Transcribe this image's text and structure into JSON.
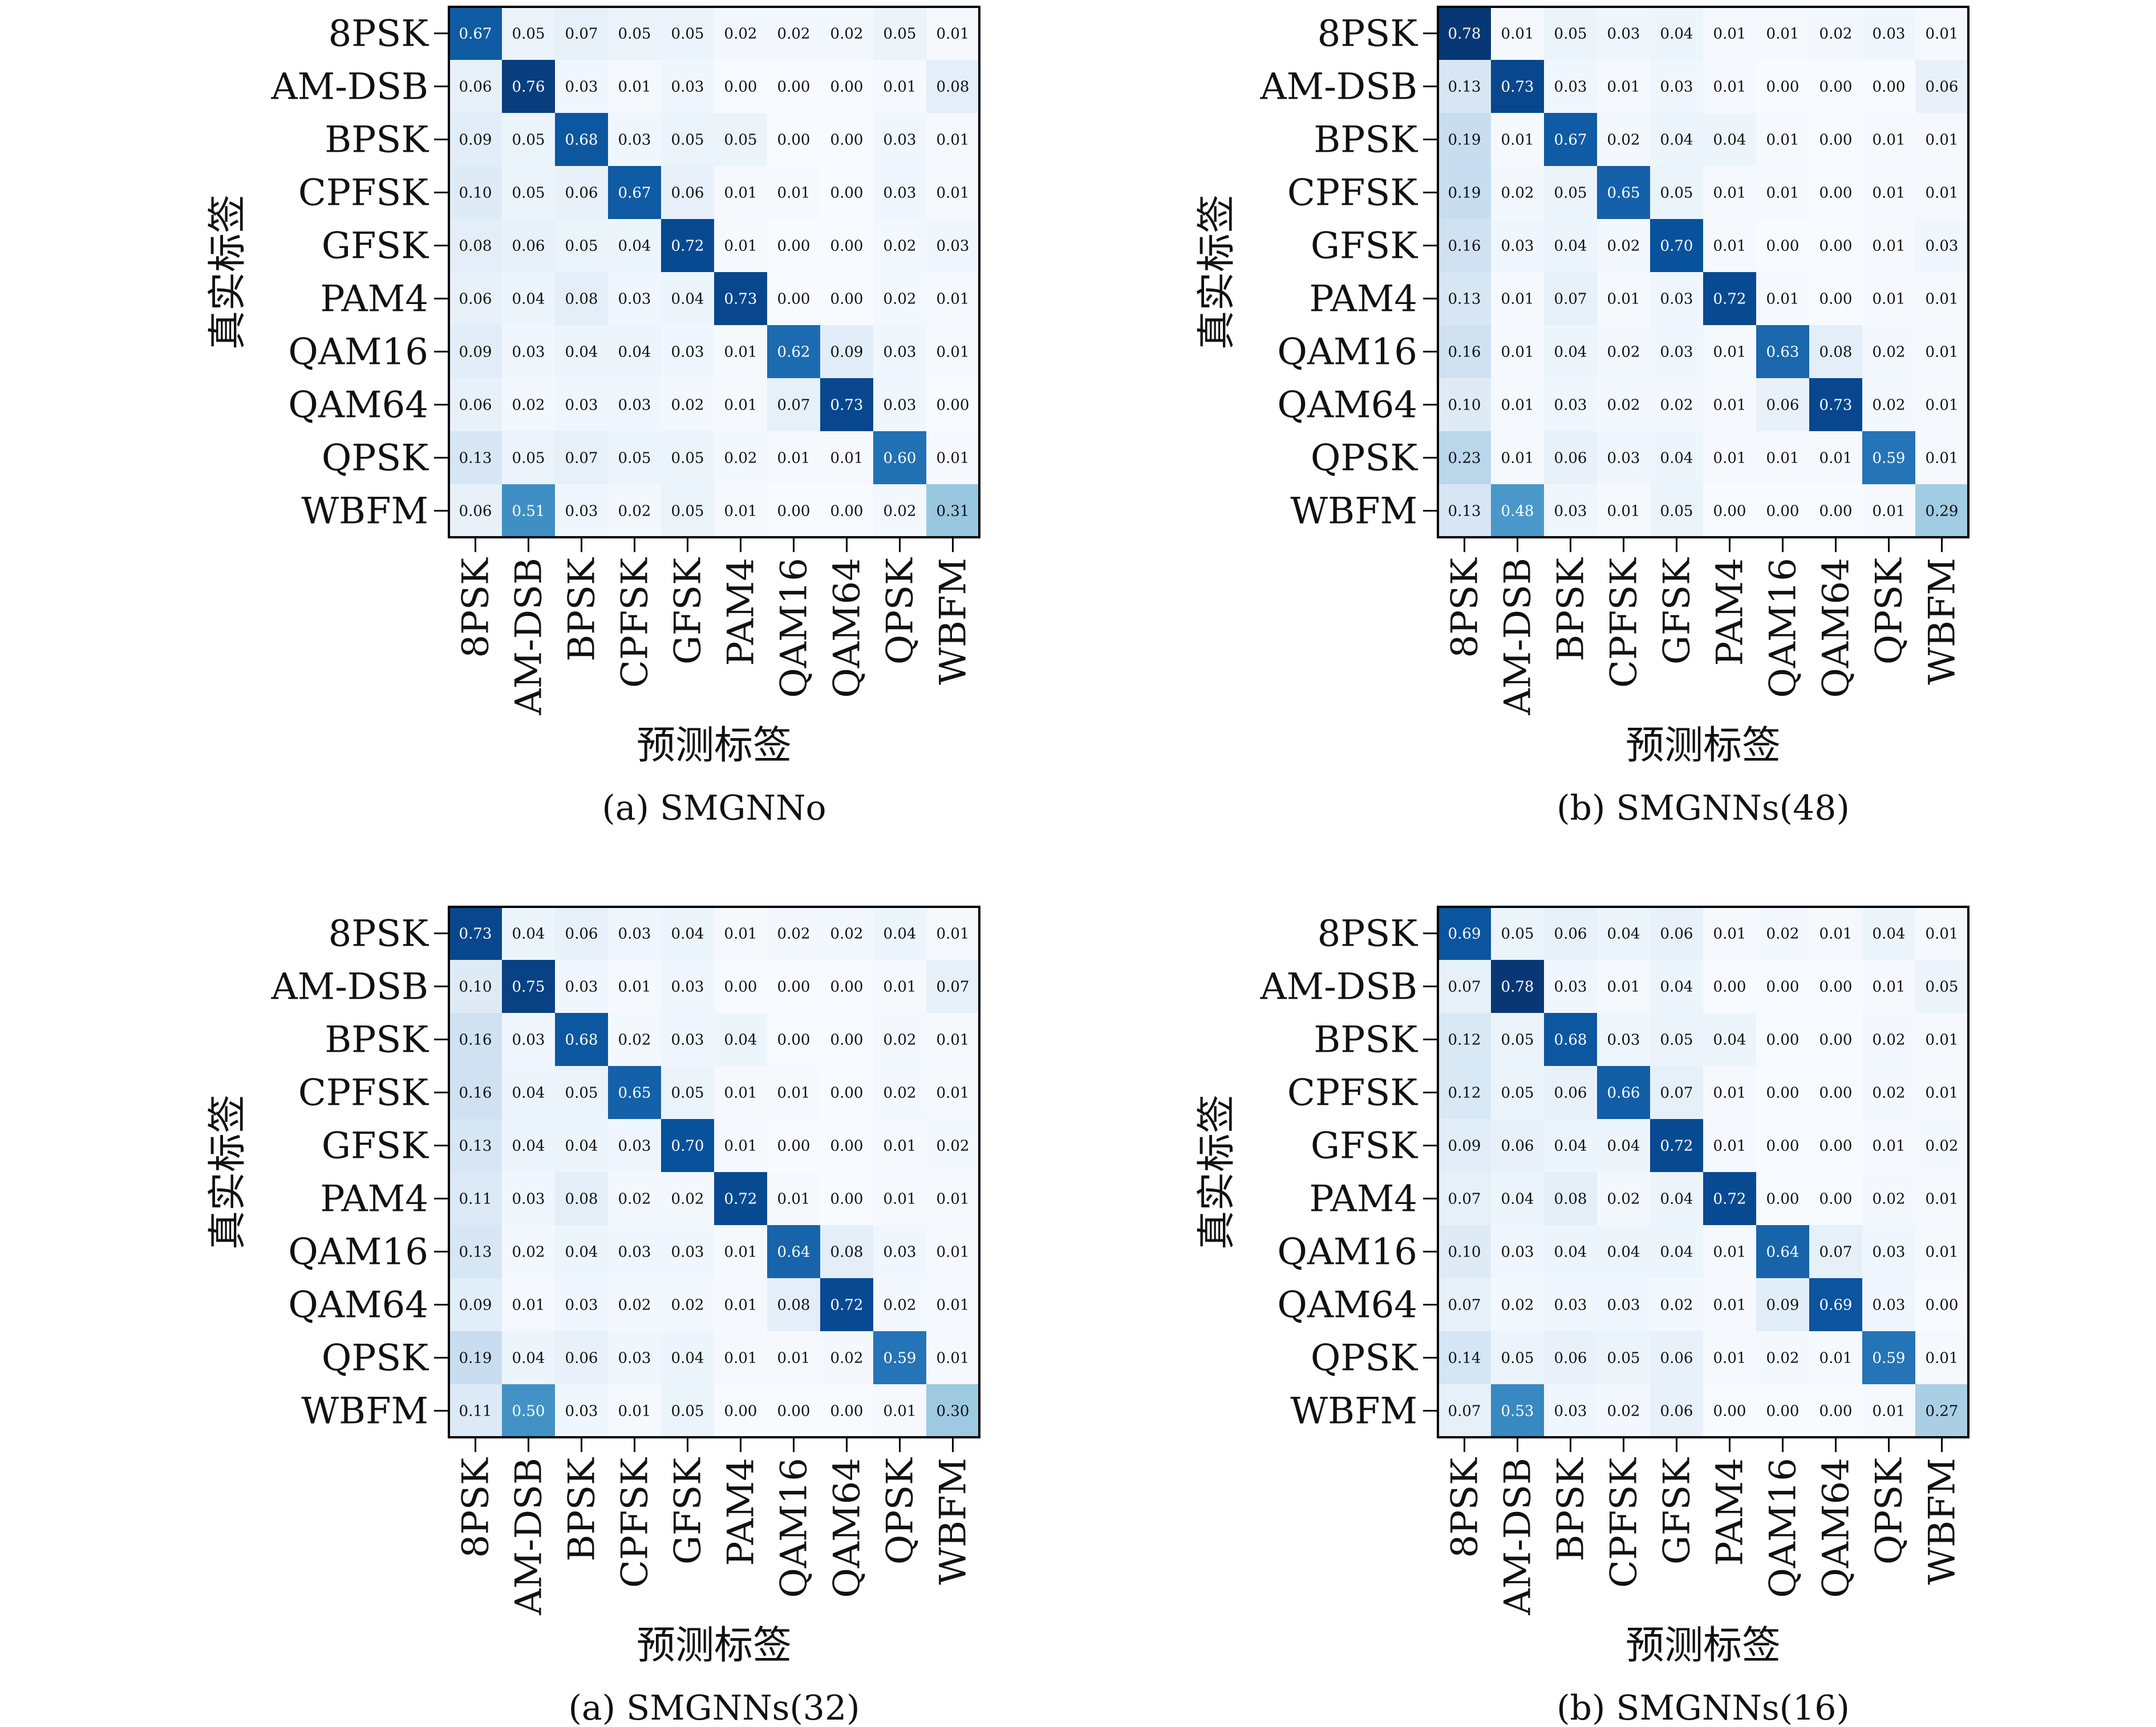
{
  "chart_data": [
    {
      "type": "heatmap",
      "caption": "(a) SMGNNo",
      "xlabel": "预测标签",
      "ylabel": "真实标签",
      "categories": [
        "8PSK",
        "AM-DSB",
        "BPSK",
        "CPFSK",
        "GFSK",
        "PAM4",
        "QAM16",
        "QAM64",
        "QPSK",
        "WBFM"
      ],
      "values": [
        [
          0.67,
          0.05,
          0.07,
          0.05,
          0.05,
          0.02,
          0.02,
          0.02,
          0.05,
          0.01
        ],
        [
          0.06,
          0.76,
          0.03,
          0.01,
          0.03,
          0.0,
          0.0,
          0.0,
          0.01,
          0.08
        ],
        [
          0.09,
          0.05,
          0.68,
          0.03,
          0.05,
          0.05,
          0.0,
          0.0,
          0.03,
          0.01
        ],
        [
          0.1,
          0.05,
          0.06,
          0.67,
          0.06,
          0.01,
          0.01,
          0.0,
          0.03,
          0.01
        ],
        [
          0.08,
          0.06,
          0.05,
          0.04,
          0.72,
          0.01,
          0.0,
          0.0,
          0.02,
          0.03
        ],
        [
          0.06,
          0.04,
          0.08,
          0.03,
          0.04,
          0.73,
          0.0,
          0.0,
          0.02,
          0.01
        ],
        [
          0.09,
          0.03,
          0.04,
          0.04,
          0.03,
          0.01,
          0.62,
          0.09,
          0.03,
          0.01
        ],
        [
          0.06,
          0.02,
          0.03,
          0.03,
          0.02,
          0.01,
          0.07,
          0.73,
          0.03,
          0.0
        ],
        [
          0.13,
          0.05,
          0.07,
          0.05,
          0.05,
          0.02,
          0.01,
          0.01,
          0.6,
          0.01
        ],
        [
          0.06,
          0.51,
          0.03,
          0.02,
          0.05,
          0.01,
          0.0,
          0.0,
          0.02,
          0.31
        ]
      ]
    },
    {
      "type": "heatmap",
      "caption": "(b) SMGNNs(48)",
      "xlabel": "预测标签",
      "ylabel": "真实标签",
      "categories": [
        "8PSK",
        "AM-DSB",
        "BPSK",
        "CPFSK",
        "GFSK",
        "PAM4",
        "QAM16",
        "QAM64",
        "QPSK",
        "WBFM"
      ],
      "values": [
        [
          0.78,
          0.01,
          0.05,
          0.03,
          0.04,
          0.01,
          0.01,
          0.02,
          0.03,
          0.01
        ],
        [
          0.13,
          0.73,
          0.03,
          0.01,
          0.03,
          0.01,
          0.0,
          0.0,
          0.0,
          0.06
        ],
        [
          0.19,
          0.01,
          0.67,
          0.02,
          0.04,
          0.04,
          0.01,
          0.0,
          0.01,
          0.01
        ],
        [
          0.19,
          0.02,
          0.05,
          0.65,
          0.05,
          0.01,
          0.01,
          0.0,
          0.01,
          0.01
        ],
        [
          0.16,
          0.03,
          0.04,
          0.02,
          0.7,
          0.01,
          0.0,
          0.0,
          0.01,
          0.03
        ],
        [
          0.13,
          0.01,
          0.07,
          0.01,
          0.03,
          0.72,
          0.01,
          0.0,
          0.01,
          0.01
        ],
        [
          0.16,
          0.01,
          0.04,
          0.02,
          0.03,
          0.01,
          0.63,
          0.08,
          0.02,
          0.01
        ],
        [
          0.1,
          0.01,
          0.03,
          0.02,
          0.02,
          0.01,
          0.06,
          0.73,
          0.02,
          0.01
        ],
        [
          0.23,
          0.01,
          0.06,
          0.03,
          0.04,
          0.01,
          0.01,
          0.01,
          0.59,
          0.01
        ],
        [
          0.13,
          0.48,
          0.03,
          0.01,
          0.05,
          0.0,
          0.0,
          0.0,
          0.01,
          0.29
        ]
      ]
    },
    {
      "type": "heatmap",
      "caption": "(a) SMGNNs(32)",
      "xlabel": "预测标签",
      "ylabel": "真实标签",
      "categories": [
        "8PSK",
        "AM-DSB",
        "BPSK",
        "CPFSK",
        "GFSK",
        "PAM4",
        "QAM16",
        "QAM64",
        "QPSK",
        "WBFM"
      ],
      "values": [
        [
          0.73,
          0.04,
          0.06,
          0.03,
          0.04,
          0.01,
          0.02,
          0.02,
          0.04,
          0.01
        ],
        [
          0.1,
          0.75,
          0.03,
          0.01,
          0.03,
          0.0,
          0.0,
          0.0,
          0.01,
          0.07
        ],
        [
          0.16,
          0.03,
          0.68,
          0.02,
          0.03,
          0.04,
          0.0,
          0.0,
          0.02,
          0.01
        ],
        [
          0.16,
          0.04,
          0.05,
          0.65,
          0.05,
          0.01,
          0.01,
          0.0,
          0.02,
          0.01
        ],
        [
          0.13,
          0.04,
          0.04,
          0.03,
          0.7,
          0.01,
          0.0,
          0.0,
          0.01,
          0.02
        ],
        [
          0.11,
          0.03,
          0.08,
          0.02,
          0.02,
          0.72,
          0.01,
          0.0,
          0.01,
          0.01
        ],
        [
          0.13,
          0.02,
          0.04,
          0.03,
          0.03,
          0.01,
          0.64,
          0.08,
          0.03,
          0.01
        ],
        [
          0.09,
          0.01,
          0.03,
          0.02,
          0.02,
          0.01,
          0.08,
          0.72,
          0.02,
          0.01
        ],
        [
          0.19,
          0.04,
          0.06,
          0.03,
          0.04,
          0.01,
          0.01,
          0.02,
          0.59,
          0.01
        ],
        [
          0.11,
          0.5,
          0.03,
          0.01,
          0.05,
          0.0,
          0.0,
          0.0,
          0.01,
          0.3
        ]
      ]
    },
    {
      "type": "heatmap",
      "caption": "(b) SMGNNs(16)",
      "xlabel": "预测标签",
      "ylabel": "真实标签",
      "categories": [
        "8PSK",
        "AM-DSB",
        "BPSK",
        "CPFSK",
        "GFSK",
        "PAM4",
        "QAM16",
        "QAM64",
        "QPSK",
        "WBFM"
      ],
      "values": [
        [
          0.69,
          0.05,
          0.06,
          0.04,
          0.06,
          0.01,
          0.02,
          0.01,
          0.04,
          0.01
        ],
        [
          0.07,
          0.78,
          0.03,
          0.01,
          0.04,
          0.0,
          0.0,
          0.0,
          0.01,
          0.05
        ],
        [
          0.12,
          0.05,
          0.68,
          0.03,
          0.05,
          0.04,
          0.0,
          0.0,
          0.02,
          0.01
        ],
        [
          0.12,
          0.05,
          0.06,
          0.66,
          0.07,
          0.01,
          0.0,
          0.0,
          0.02,
          0.01
        ],
        [
          0.09,
          0.06,
          0.04,
          0.04,
          0.72,
          0.01,
          0.0,
          0.0,
          0.01,
          0.02
        ],
        [
          0.07,
          0.04,
          0.08,
          0.02,
          0.04,
          0.72,
          0.0,
          0.0,
          0.02,
          0.01
        ],
        [
          0.1,
          0.03,
          0.04,
          0.04,
          0.04,
          0.01,
          0.64,
          0.07,
          0.03,
          0.01
        ],
        [
          0.07,
          0.02,
          0.03,
          0.03,
          0.02,
          0.01,
          0.09,
          0.69,
          0.03,
          0.0
        ],
        [
          0.14,
          0.05,
          0.06,
          0.05,
          0.06,
          0.01,
          0.02,
          0.01,
          0.59,
          0.01
        ],
        [
          0.07,
          0.53,
          0.03,
          0.02,
          0.06,
          0.0,
          0.0,
          0.0,
          0.01,
          0.27
        ]
      ]
    }
  ],
  "colors": {
    "colormap_low": "#f7fbff",
    "colormap_high": "#08306b",
    "text_dark": "#111111",
    "text_light": "#ffffff"
  }
}
